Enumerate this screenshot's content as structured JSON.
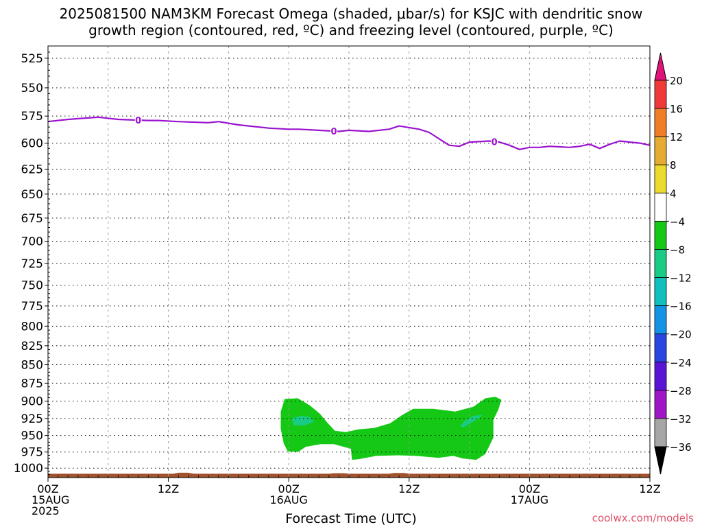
{
  "header": {
    "line1": "2025081500 NAM3KM Forecast Omega (shaded, μbar/s) for KSJC with dendritic snow",
    "line2": "growth region (contoured, red, ºC) and freezing level (contoured, purple, ºC)"
  },
  "footer": {
    "credit": "coolwx.com/models"
  },
  "chart_data": {
    "type": "heatmap",
    "xlabel": "Forecast Time (UTC)",
    "ylabel": "",
    "x_range_hours": [
      0,
      60
    ],
    "y_range_hpa": [
      515,
      1015
    ],
    "x_ticks": [
      {
        "hour": 0,
        "lines": [
          "00Z",
          "15AUG",
          "2025"
        ]
      },
      {
        "hour": 12,
        "lines": [
          "12Z"
        ]
      },
      {
        "hour": 24,
        "lines": [
          "00Z",
          "16AUG"
        ]
      },
      {
        "hour": 36,
        "lines": [
          "12Z"
        ]
      },
      {
        "hour": 48,
        "lines": [
          "00Z",
          "17AUG"
        ]
      },
      {
        "hour": 60,
        "lines": [
          "12Z"
        ]
      }
    ],
    "y_ticks": [
      525,
      550,
      575,
      600,
      625,
      650,
      675,
      700,
      725,
      750,
      775,
      800,
      825,
      850,
      875,
      900,
      925,
      950,
      975,
      1000
    ],
    "grid": true,
    "colorbar": {
      "placement": "right",
      "unit": "μbar/s",
      "labels": [
        "20",
        "16",
        "12",
        "8",
        "4",
        "−4",
        "−8",
        "−12",
        "−16",
        "−20",
        "−24",
        "−28",
        "−32",
        "−36"
      ],
      "bands": [
        {
          "from": 16,
          "to": 20,
          "color": "#f03a3a"
        },
        {
          "from": 12,
          "to": 16,
          "color": "#f07d28"
        },
        {
          "from": 8,
          "to": 12,
          "color": "#e6ab32"
        },
        {
          "from": 4,
          "to": 8,
          "color": "#ecdb2c"
        },
        {
          "from": -4,
          "to": 4,
          "color": "#ffffff"
        },
        {
          "from": -8,
          "to": -4,
          "color": "#15c815"
        },
        {
          "from": -12,
          "to": -8,
          "color": "#18cc86"
        },
        {
          "from": -16,
          "to": -12,
          "color": "#12bfbf"
        },
        {
          "from": -20,
          "to": -16,
          "color": "#1493e6"
        },
        {
          "from": -24,
          "to": -20,
          "color": "#2a45e2"
        },
        {
          "from": -28,
          "to": -24,
          "color": "#5b14d6"
        },
        {
          "from": -32,
          "to": -28,
          "color": "#9f16c6"
        },
        {
          "from": -36,
          "to": -32,
          "color": "#a6a6a6"
        }
      ],
      "over_color": "#e1147a",
      "under_color": "#000000"
    },
    "freezing_level": {
      "label": "0",
      "color": "#9b12cf",
      "points": [
        [
          0,
          580
        ],
        [
          2,
          578
        ],
        [
          5,
          576
        ],
        [
          7,
          578
        ],
        [
          10,
          579
        ],
        [
          11,
          579
        ],
        [
          13,
          580
        ],
        [
          16,
          581
        ],
        [
          17,
          580
        ],
        [
          19,
          583
        ],
        [
          22,
          586
        ],
        [
          24,
          587
        ],
        [
          25,
          587
        ],
        [
          27,
          588
        ],
        [
          29,
          589
        ],
        [
          30,
          588
        ],
        [
          32,
          589
        ],
        [
          34,
          587
        ],
        [
          35,
          584
        ],
        [
          37,
          587
        ],
        [
          38,
          590
        ],
        [
          39,
          596
        ],
        [
          40,
          602
        ],
        [
          41,
          603
        ],
        [
          42,
          599
        ],
        [
          44,
          598
        ],
        [
          45,
          599
        ],
        [
          46,
          602
        ],
        [
          47,
          606
        ],
        [
          48,
          604
        ],
        [
          49,
          604
        ],
        [
          50,
          603
        ],
        [
          52,
          604
        ],
        [
          53,
          603
        ],
        [
          54,
          601
        ],
        [
          55,
          605
        ],
        [
          56,
          601
        ],
        [
          57,
          598
        ],
        [
          58,
          599
        ],
        [
          59,
          600
        ],
        [
          60,
          602
        ]
      ],
      "label_hours": [
        9,
        28.5,
        44.5
      ]
    },
    "omega_regions": [
      {
        "band": "-4 to -8",
        "color": "#15c815",
        "outline": [
          [
            23.6,
            897
          ],
          [
            24.9,
            896
          ],
          [
            26.1,
            906
          ],
          [
            27.1,
            918
          ],
          [
            27.9,
            932
          ],
          [
            28.6,
            943
          ],
          [
            29.7,
            945
          ],
          [
            30.9,
            941
          ],
          [
            32.5,
            939
          ],
          [
            34.1,
            932
          ],
          [
            35.3,
            920
          ],
          [
            36.4,
            911
          ],
          [
            38.4,
            911
          ],
          [
            40.6,
            915
          ],
          [
            42.4,
            908
          ],
          [
            43.6,
            896
          ],
          [
            44.6,
            894
          ],
          [
            45.2,
            898
          ],
          [
            44.9,
            912
          ],
          [
            44.4,
            927
          ],
          [
            44.4,
            953
          ],
          [
            43.6,
            978
          ],
          [
            42.7,
            987
          ],
          [
            41.4,
            985
          ],
          [
            40.4,
            981
          ],
          [
            38.9,
            984
          ],
          [
            36.7,
            981
          ],
          [
            34.9,
            980
          ],
          [
            32.7,
            981
          ],
          [
            31.0,
            986
          ],
          [
            30.3,
            987
          ],
          [
            30.2,
            970
          ],
          [
            28.5,
            963
          ],
          [
            27.2,
            963
          ],
          [
            25.7,
            967
          ],
          [
            24.9,
            975
          ],
          [
            23.9,
            974
          ],
          [
            23.5,
            962
          ],
          [
            23.2,
            940
          ],
          [
            23.2,
            915
          ]
        ]
      },
      {
        "band": "-8 to -12",
        "color": "#18cc86",
        "outline": [
          [
            24.3,
            925
          ],
          [
            25.2,
            921
          ],
          [
            26.1,
            923
          ],
          [
            26.5,
            930
          ],
          [
            25.6,
            935
          ],
          [
            24.5,
            935
          ]
        ]
      },
      {
        "band": "-8 to -12",
        "color": "#18cc86",
        "outline": [
          [
            41.4,
            938
          ],
          [
            42.1,
            932
          ],
          [
            42.9,
            925
          ],
          [
            43.3,
            920
          ],
          [
            42.4,
            921
          ],
          [
            41.5,
            929
          ],
          [
            41.1,
            936
          ]
        ]
      }
    ],
    "surface": {
      "color": "#a0522d",
      "pressure_hpa": 1010
    }
  }
}
